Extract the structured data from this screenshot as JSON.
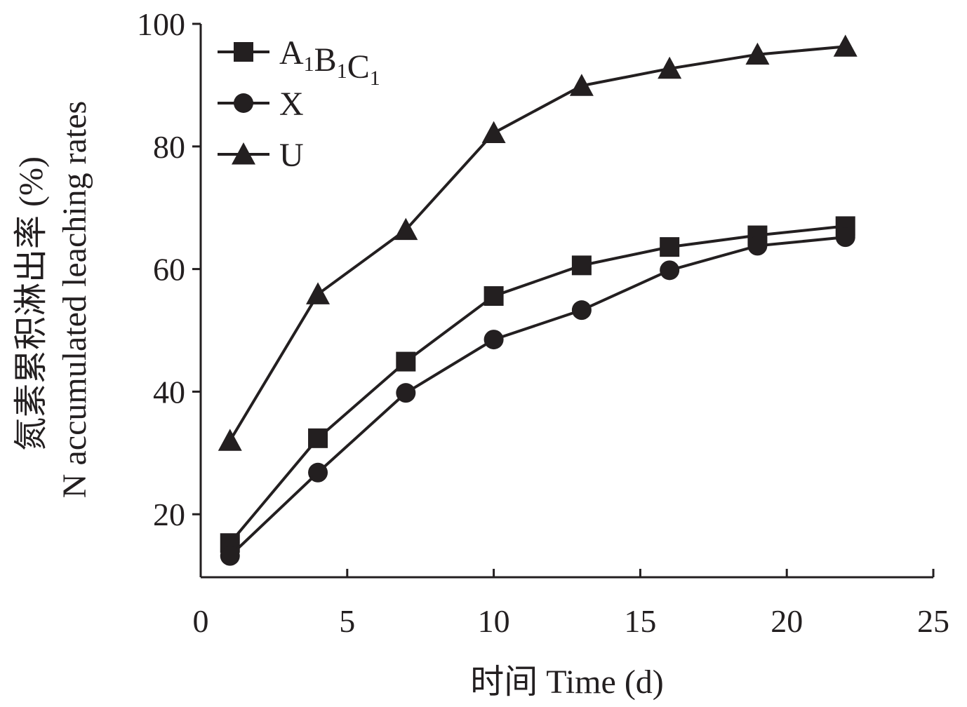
{
  "chart_data": {
    "type": "line",
    "title": "",
    "xlabel": "时间 Time (d)",
    "ylabel_cn": "氮素累积淋出率 (%)",
    "ylabel_en": "N accumulated leaching rates",
    "xlim": [
      0,
      25
    ],
    "ylim": [
      10,
      100
    ],
    "xticks": [
      0,
      5,
      10,
      15,
      20,
      25
    ],
    "yticks": [
      20,
      40,
      60,
      80,
      100
    ],
    "grid": false,
    "legend_position": "top-left",
    "x": [
      1,
      4,
      7,
      10,
      13,
      16,
      19,
      22
    ],
    "series": [
      {
        "name": "A1B1C1",
        "marker": "square",
        "legend_parts": [
          {
            "text": "A",
            "sub": "1"
          },
          {
            "text": "B",
            "sub": "1"
          },
          {
            "text": "C",
            "sub": "1"
          }
        ],
        "values": [
          15.3,
          32.4,
          44.9,
          55.6,
          60.6,
          63.6,
          65.5,
          67.0
        ]
      },
      {
        "name": "X",
        "marker": "circle",
        "values": [
          13.2,
          26.8,
          39.8,
          48.5,
          53.3,
          59.8,
          63.8,
          65.2
        ]
      },
      {
        "name": "U",
        "marker": "triangle",
        "values": [
          32.0,
          55.9,
          66.4,
          82.2,
          89.9,
          92.7,
          95.0,
          96.3
        ]
      }
    ],
    "colors": {
      "axis": "#231f20",
      "series": "#231f20"
    }
  }
}
